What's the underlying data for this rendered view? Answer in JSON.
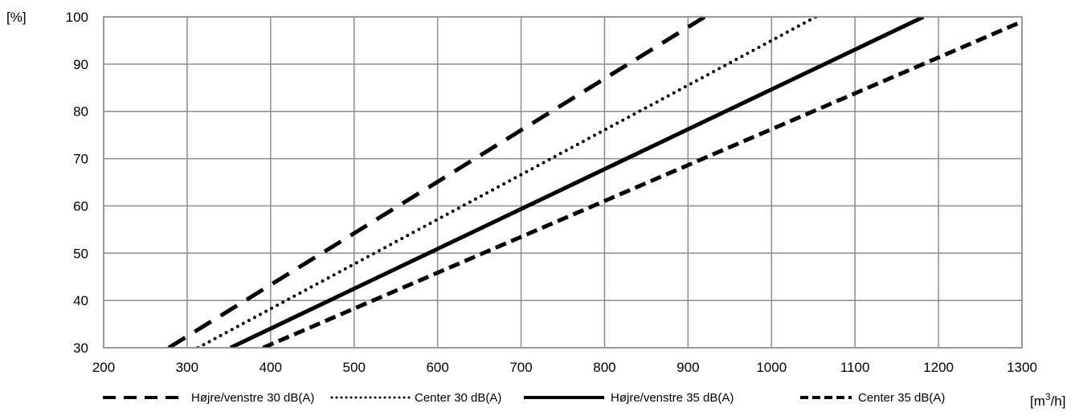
{
  "chart_data": {
    "type": "line",
    "title": "",
    "ylabel": "[%]",
    "xlabel": "[m³/h]",
    "xlim": [
      200,
      1300
    ],
    "ylim": [
      30,
      100
    ],
    "x_ticks": [
      200,
      300,
      400,
      500,
      600,
      700,
      800,
      900,
      1000,
      1100,
      1200,
      1300
    ],
    "y_ticks": [
      30,
      40,
      50,
      60,
      70,
      80,
      90,
      100
    ],
    "grid": true,
    "legend_position": "bottom",
    "series": [
      {
        "name": "Højre/venstre 30 dB(A)",
        "style": "long-dash",
        "color": "#000000",
        "points": [
          [
            278,
            30
          ],
          [
            920,
            100
          ]
        ]
      },
      {
        "name": "Center 30 dB(A)",
        "style": "dotted",
        "color": "#000000",
        "points": [
          [
            313,
            30
          ],
          [
            1053,
            100
          ]
        ]
      },
      {
        "name": "Højre/venstre 35 dB(A)",
        "style": "solid",
        "color": "#000000",
        "points": [
          [
            352,
            30
          ],
          [
            1182,
            100
          ]
        ]
      },
      {
        "name": "Center 35 dB(A)",
        "style": "short-dash",
        "color": "#000000",
        "points": [
          [
            391,
            30
          ],
          [
            1300,
            99
          ]
        ]
      }
    ]
  }
}
